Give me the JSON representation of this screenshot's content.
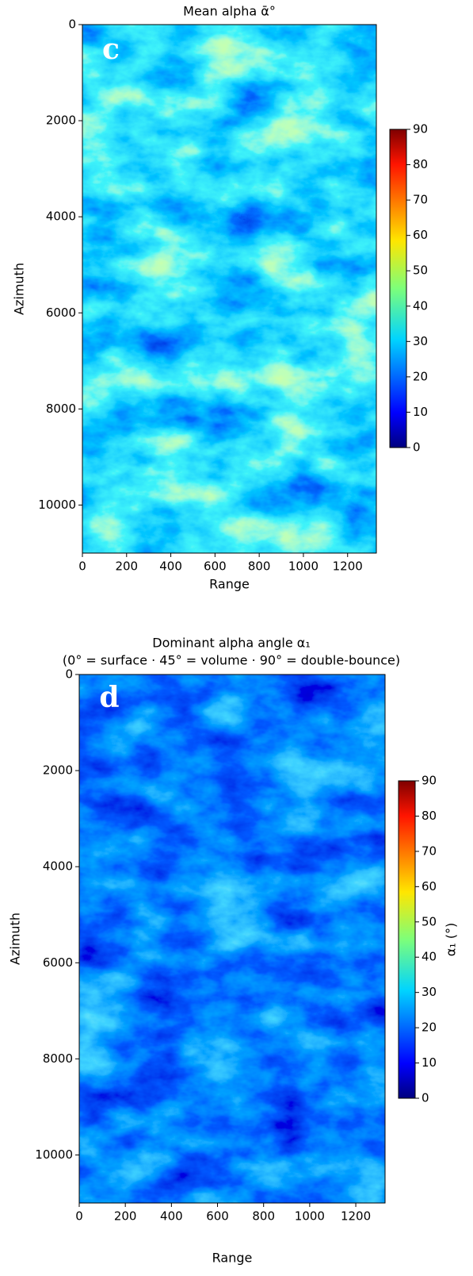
{
  "chart_data": [
    {
      "type": "heatmap",
      "title": "Mean alpha  ᾱ°",
      "panel_label": "c",
      "x_label": "Range",
      "y_label": "Azimuth",
      "xlim": [
        0,
        1330
      ],
      "xticks": [
        0,
        200,
        400,
        600,
        800,
        1000,
        1200
      ],
      "ylim": [
        11000,
        0
      ],
      "yticks": [
        0,
        2000,
        4000,
        6000,
        8000,
        10000
      ],
      "colormap": "jet",
      "clim": [
        0,
        90
      ],
      "cticks": [
        0,
        10,
        20,
        30,
        40,
        50,
        60,
        70,
        80,
        90
      ]
    },
    {
      "type": "heatmap",
      "title": [
        "Dominant alpha angle  α₁",
        "(0° = surface  ·  45° = volume  ·  90° = double-bounce)"
      ],
      "panel_label": "d",
      "x_label": "Range",
      "y_label": "Azimuth",
      "colorbar_label": "α₁ (°)",
      "xlim": [
        0,
        1327
      ],
      "xticks": [
        0,
        200,
        400,
        600,
        800,
        1000,
        1200
      ],
      "ylim": [
        11000,
        0
      ],
      "yticks": [
        0,
        2000,
        4000,
        6000,
        8000,
        10000
      ],
      "colormap": "jet",
      "clim": [
        0,
        90
      ],
      "cticks": [
        0,
        10,
        20,
        30,
        40,
        50,
        60,
        70,
        80,
        90
      ]
    }
  ]
}
